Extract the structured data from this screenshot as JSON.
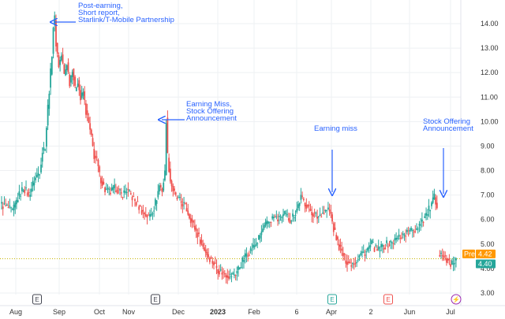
{
  "chart_data": {
    "type": "candlestick",
    "y_axis": {
      "ticks": [
        "14.00",
        "13.00",
        "12.00",
        "11.00",
        "10.00",
        "9.00",
        "8.00",
        "7.00",
        "6.00",
        "5.00",
        "4.00",
        "3.00"
      ],
      "range": [
        2.75,
        14.5
      ],
      "position": "right"
    },
    "x_axis": {
      "ticks": [
        {
          "label": "Aug",
          "bold": false
        },
        {
          "label": "Sep",
          "bold": false
        },
        {
          "label": "Oct",
          "bold": false
        },
        {
          "label": "Nov",
          "bold": false
        },
        {
          "label": "Dec",
          "bold": false
        },
        {
          "label": "2023",
          "bold": true
        },
        {
          "label": "Feb",
          "bold": false
        },
        {
          "label": "6",
          "bold": false
        },
        {
          "label": "Apr",
          "bold": false
        },
        {
          "label": "2",
          "bold": false
        },
        {
          "label": "Jun",
          "bold": false
        },
        {
          "label": "Jul",
          "bold": false
        }
      ]
    },
    "grid": true,
    "colors": {
      "up": "#26a69a",
      "down": "#ef5350",
      "annotation": "#2962ff",
      "pre": "#ff9800",
      "last": "#26a69a"
    },
    "series_path": [
      [
        0,
        6.6
      ],
      [
        4,
        6.5
      ],
      [
        8,
        6.3
      ],
      [
        12,
        6.9
      ],
      [
        16,
        7.3
      ],
      [
        20,
        7.0
      ],
      [
        24,
        7.6
      ],
      [
        28,
        8.0
      ],
      [
        30,
        8.8
      ],
      [
        32,
        9.0
      ],
      [
        34,
        10.6
      ],
      [
        35,
        11.3
      ],
      [
        36,
        12.0
      ],
      [
        37,
        12.8
      ],
      [
        38,
        13.9
      ],
      [
        39,
        14.2
      ],
      [
        40,
        13.2
      ],
      [
        42,
        12.3
      ],
      [
        44,
        12.7
      ],
      [
        46,
        11.9
      ],
      [
        48,
        12.4
      ],
      [
        50,
        11.6
      ],
      [
        52,
        12.2
      ],
      [
        54,
        11.3
      ],
      [
        56,
        11.7
      ],
      [
        58,
        10.9
      ],
      [
        60,
        11.2
      ],
      [
        62,
        10.4
      ],
      [
        64,
        9.9
      ],
      [
        66,
        9.3
      ],
      [
        68,
        8.6
      ],
      [
        70,
        8.4
      ],
      [
        72,
        7.8
      ],
      [
        74,
        7.5
      ],
      [
        76,
        7.2
      ],
      [
        80,
        7.1
      ],
      [
        84,
        7.3
      ],
      [
        88,
        7.0
      ],
      [
        92,
        7.2
      ],
      [
        96,
        6.9
      ],
      [
        100,
        6.6
      ],
      [
        104,
        6.3
      ],
      [
        108,
        6.1
      ],
      [
        112,
        6.5
      ],
      [
        114,
        6.9
      ],
      [
        116,
        7.4
      ],
      [
        118,
        7.2
      ],
      [
        120,
        7.9
      ],
      [
        121,
        10.1
      ],
      [
        122,
        8.6
      ],
      [
        124,
        7.6
      ],
      [
        126,
        7.2
      ],
      [
        128,
        6.9
      ],
      [
        130,
        6.8
      ],
      [
        132,
        6.7
      ],
      [
        134,
        6.6
      ],
      [
        136,
        6.4
      ],
      [
        140,
        5.9
      ],
      [
        144,
        5.4
      ],
      [
        148,
        4.9
      ],
      [
        152,
        4.5
      ],
      [
        156,
        4.2
      ],
      [
        160,
        3.9
      ],
      [
        164,
        3.8
      ],
      [
        168,
        3.7
      ],
      [
        172,
        3.8
      ],
      [
        176,
        4.2
      ],
      [
        180,
        4.6
      ],
      [
        184,
        4.8
      ],
      [
        188,
        5.1
      ],
      [
        192,
        5.6
      ],
      [
        196,
        5.9
      ],
      [
        200,
        6.1
      ],
      [
        204,
        6.0
      ],
      [
        208,
        6.2
      ],
      [
        212,
        6.0
      ],
      [
        216,
        6.3
      ],
      [
        220,
        6.9
      ],
      [
        224,
        6.6
      ],
      [
        228,
        6.3
      ],
      [
        232,
        6.1
      ],
      [
        236,
        6.3
      ],
      [
        240,
        6.4
      ],
      [
        242,
        6.2
      ],
      [
        244,
        5.6
      ],
      [
        248,
        4.9
      ],
      [
        252,
        4.4
      ],
      [
        256,
        4.2
      ],
      [
        260,
        4.3
      ],
      [
        264,
        4.6
      ],
      [
        268,
        4.7
      ],
      [
        272,
        5.0
      ],
      [
        276,
        4.7
      ],
      [
        280,
        4.9
      ],
      [
        284,
        5.0
      ],
      [
        288,
        5.1
      ],
      [
        292,
        5.3
      ],
      [
        296,
        5.4
      ],
      [
        300,
        5.5
      ],
      [
        304,
        5.6
      ],
      [
        308,
        5.9
      ],
      [
        312,
        6.2
      ],
      [
        316,
        6.6
      ],
      [
        318,
        6.9
      ],
      [
        320,
        6.3
      ]
    ],
    "gap_path": [
      [
        322,
        4.6
      ],
      [
        326,
        4.5
      ],
      [
        330,
        4.1
      ],
      [
        334,
        4.4
      ]
    ],
    "pre_market": {
      "label": "Pre",
      "value": "4.42"
    },
    "last_price": {
      "value": "4.40"
    },
    "annotations": [
      {
        "lines": [
          "Post-earning,",
          "Short report,",
          "Starlink/T-Mobile Partnership"
        ],
        "arrow": "left",
        "target_x": 39,
        "target_y": 14.2
      },
      {
        "lines": [
          "Earning Miss,",
          "Stock Offering",
          "Announcement"
        ],
        "arrow": "left",
        "target_x": 121,
        "target_y": 10.1
      },
      {
        "lines": [
          "Earning miss"
        ],
        "arrow": "down",
        "target_x": 242,
        "target_y": 6.4
      },
      {
        "lines": [
          "Stock Offering",
          "Announcement"
        ],
        "arrow": "down",
        "target_x": 319,
        "target_y": 6.9
      }
    ],
    "event_badges": [
      {
        "label": "E",
        "style": "dark",
        "x_index": 1
      },
      {
        "label": "E",
        "style": "dark",
        "x_index": 3
      },
      {
        "label": "E",
        "style": "green",
        "x_index": 8
      },
      {
        "label": "E",
        "style": "red",
        "x_index": 9
      },
      {
        "label": "⚡",
        "style": "purple",
        "x_index": 11
      }
    ]
  }
}
